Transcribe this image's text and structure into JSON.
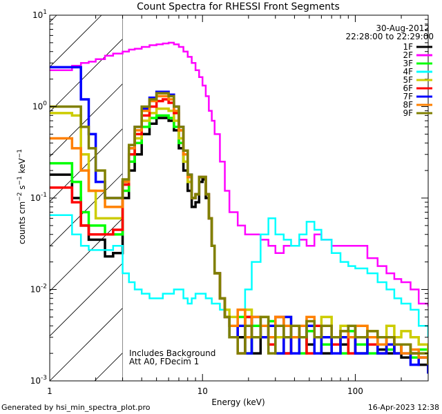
{
  "chart_data": {
    "type": "line",
    "title": "Count Spectra for RHESSI Front Segments",
    "xlabel": "Energy (keV)",
    "ylabel": "counts cm-2 s-1 keV-1",
    "xscale": "log",
    "yscale": "log",
    "xlim": [
      1,
      300
    ],
    "ylim": [
      0.001,
      10
    ],
    "x_ticks": [
      {
        "v": 1,
        "label": "1"
      },
      {
        "v": 10,
        "label": "10"
      },
      {
        "v": 100,
        "label": "100"
      }
    ],
    "y_ticks": [
      {
        "v": 0.001,
        "base": "10",
        "exp": "-3"
      },
      {
        "v": 0.01,
        "base": "10",
        "exp": "-2"
      },
      {
        "v": 0.1,
        "base": "10",
        "exp": "-1"
      },
      {
        "v": 1,
        "base": "10",
        "exp": "0"
      },
      {
        "v": 10,
        "base": "10",
        "exp": "1"
      }
    ],
    "date": "30-Aug-2012",
    "time_range": "22:28:00 to 22:29:00",
    "annotation": [
      "Includes Background",
      "Att A0, FDecim 1"
    ],
    "hatched_region_max_energy": 3,
    "legend_position": "top-right",
    "energy": [
      1.0,
      1.2,
      1.4,
      1.6,
      1.8,
      2.0,
      2.3,
      2.6,
      3.0,
      3.3,
      3.6,
      4.0,
      4.5,
      5.0,
      5.5,
      6.0,
      6.5,
      7.0,
      7.5,
      8.0,
      8.5,
      9.0,
      9.5,
      10,
      10.5,
      11,
      11.5,
      12,
      13,
      14,
      15,
      17,
      19,
      21,
      24,
      27,
      30,
      34,
      38,
      43,
      48,
      54,
      60,
      70,
      80,
      90,
      100,
      120,
      140,
      160,
      180,
      200,
      230,
      260,
      300
    ],
    "series": [
      {
        "name": "1F",
        "color": "#000000",
        "values": [
          0.18,
          0.18,
          0.1,
          0.05,
          0.035,
          0.035,
          0.023,
          0.025,
          0.1,
          0.2,
          0.3,
          0.5,
          0.65,
          0.75,
          0.75,
          0.7,
          0.55,
          0.35,
          0.2,
          0.12,
          0.08,
          0.09,
          0.15,
          0.16,
          0.1,
          0.06,
          0.03,
          0.015,
          0.008,
          0.005,
          0.004,
          0.003,
          0.005,
          0.002,
          0.004,
          0.003,
          0.005,
          0.002,
          0.004,
          0.003,
          0.0025,
          0.004,
          0.002,
          0.003,
          0.0025,
          0.003,
          0.002,
          0.003,
          0.0022,
          0.002,
          0.0025,
          0.0018,
          0.002,
          0.0015,
          0.0012
        ]
      },
      {
        "name": "2F",
        "color": "#ff00ff",
        "values": [
          2.5,
          2.5,
          2.8,
          3.0,
          3.1,
          3.3,
          3.6,
          3.8,
          4.0,
          4.2,
          4.3,
          4.5,
          4.7,
          4.8,
          4.9,
          5.0,
          4.8,
          4.5,
          4.0,
          3.5,
          3.0,
          2.5,
          2.1,
          1.7,
          1.3,
          0.9,
          0.7,
          0.5,
          0.25,
          0.12,
          0.07,
          0.05,
          0.04,
          0.04,
          0.035,
          0.03,
          0.025,
          0.03,
          0.03,
          0.035,
          0.03,
          0.04,
          0.035,
          0.03,
          0.03,
          0.03,
          0.03,
          0.022,
          0.018,
          0.015,
          0.013,
          0.012,
          0.01,
          0.007,
          0.0065
        ]
      },
      {
        "name": "3F",
        "color": "#00ff00",
        "values": [
          0.24,
          0.24,
          0.15,
          0.07,
          0.05,
          0.05,
          0.04,
          0.04,
          0.12,
          0.25,
          0.4,
          0.6,
          0.75,
          0.8,
          0.8,
          0.75,
          0.6,
          0.4,
          0.25,
          0.15,
          0.1,
          0.11,
          0.17,
          0.17,
          0.11,
          0.06,
          0.03,
          0.015,
          0.008,
          0.005,
          0.003,
          0.005,
          0.002,
          0.004,
          0.003,
          0.0045,
          0.002,
          0.004,
          0.003,
          0.002,
          0.0035,
          0.004,
          0.0025,
          0.003,
          0.002,
          0.0035,
          0.0025,
          0.002,
          0.003,
          0.0022,
          0.002,
          0.0025,
          0.0018,
          0.0022,
          0.0017
        ]
      },
      {
        "name": "4F",
        "color": "#00ffff",
        "values": [
          0.065,
          0.065,
          0.04,
          0.03,
          0.027,
          0.027,
          0.027,
          0.03,
          0.015,
          0.012,
          0.01,
          0.009,
          0.008,
          0.008,
          0.009,
          0.009,
          0.01,
          0.01,
          0.008,
          0.007,
          0.008,
          0.009,
          0.009,
          0.009,
          0.008,
          0.008,
          0.007,
          0.007,
          0.006,
          0.005,
          0.004,
          0.006,
          0.01,
          0.02,
          0.04,
          0.06,
          0.04,
          0.035,
          0.03,
          0.04,
          0.055,
          0.045,
          0.035,
          0.025,
          0.02,
          0.018,
          0.017,
          0.015,
          0.012,
          0.01,
          0.008,
          0.007,
          0.006,
          0.004,
          0.003
        ]
      },
      {
        "name": "5F",
        "color": "#cccc00",
        "values": [
          0.85,
          0.85,
          0.8,
          0.3,
          0.12,
          0.06,
          0.06,
          0.06,
          0.15,
          0.3,
          0.45,
          0.7,
          0.85,
          0.95,
          0.95,
          0.9,
          0.7,
          0.45,
          0.25,
          0.15,
          0.1,
          0.11,
          0.17,
          0.17,
          0.11,
          0.06,
          0.03,
          0.015,
          0.008,
          0.006,
          0.005,
          0.004,
          0.006,
          0.003,
          0.005,
          0.004,
          0.003,
          0.005,
          0.004,
          0.003,
          0.004,
          0.003,
          0.005,
          0.003,
          0.004,
          0.003,
          0.004,
          0.0035,
          0.003,
          0.004,
          0.003,
          0.0035,
          0.003,
          0.0025,
          0.002
        ]
      },
      {
        "name": "6F",
        "color": "#ff0000",
        "values": [
          0.13,
          0.13,
          0.09,
          0.05,
          0.04,
          0.04,
          0.04,
          0.045,
          0.14,
          0.3,
          0.5,
          0.8,
          1.0,
          1.15,
          1.2,
          1.1,
          0.85,
          0.55,
          0.3,
          0.17,
          0.1,
          0.11,
          0.17,
          0.17,
          0.11,
          0.06,
          0.03,
          0.015,
          0.008,
          0.005,
          0.004,
          0.002,
          0.005,
          0.003,
          0.004,
          0.0025,
          0.005,
          0.002,
          0.004,
          0.003,
          0.002,
          0.004,
          0.003,
          0.0025,
          0.003,
          0.002,
          0.003,
          0.0025,
          0.002,
          0.003,
          0.002,
          0.0025,
          0.002,
          0.0018,
          0.0015
        ]
      },
      {
        "name": "7F",
        "color": "#0000ff",
        "values": [
          2.7,
          2.7,
          2.7,
          1.2,
          0.5,
          0.15,
          0.1,
          0.1,
          0.15,
          0.35,
          0.6,
          0.95,
          1.25,
          1.45,
          1.45,
          1.35,
          1.0,
          0.6,
          0.33,
          0.18,
          0.1,
          0.11,
          0.17,
          0.17,
          0.11,
          0.06,
          0.03,
          0.015,
          0.008,
          0.005,
          0.003,
          0.004,
          0.002,
          0.005,
          0.003,
          0.004,
          0.002,
          0.005,
          0.002,
          0.003,
          0.004,
          0.002,
          0.003,
          0.002,
          0.003,
          0.004,
          0.002,
          0.003,
          0.002,
          0.0025,
          0.002,
          0.002,
          0.0015,
          0.0018,
          0.0012
        ]
      },
      {
        "name": "8F",
        "color": "#ff8000",
        "values": [
          0.45,
          0.45,
          0.35,
          0.2,
          0.12,
          0.12,
          0.08,
          0.08,
          0.15,
          0.35,
          0.55,
          0.9,
          1.15,
          1.3,
          1.3,
          1.2,
          0.9,
          0.55,
          0.3,
          0.17,
          0.1,
          0.11,
          0.17,
          0.17,
          0.11,
          0.06,
          0.03,
          0.015,
          0.008,
          0.005,
          0.004,
          0.006,
          0.003,
          0.005,
          0.004,
          0.003,
          0.005,
          0.004,
          0.003,
          0.004,
          0.005,
          0.003,
          0.004,
          0.003,
          0.0035,
          0.003,
          0.004,
          0.003,
          0.0025,
          0.003,
          0.0025,
          0.002,
          0.0022,
          0.0018,
          0.0015
        ]
      },
      {
        "name": "9F",
        "color": "#808000",
        "values": [
          1.0,
          1.0,
          1.0,
          0.6,
          0.35,
          0.2,
          0.1,
          0.1,
          0.16,
          0.38,
          0.6,
          1.0,
          1.2,
          1.4,
          1.4,
          1.3,
          1.0,
          0.6,
          0.33,
          0.18,
          0.1,
          0.11,
          0.17,
          0.17,
          0.11,
          0.06,
          0.03,
          0.015,
          0.008,
          0.005,
          0.003,
          0.002,
          0.004,
          0.003,
          0.005,
          0.002,
          0.004,
          0.003,
          0.004,
          0.003,
          0.0045,
          0.003,
          0.004,
          0.003,
          0.0035,
          0.004,
          0.003,
          0.0035,
          0.003,
          0.003,
          0.0025,
          0.0025,
          0.002,
          0.002,
          0.0015
        ]
      }
    ]
  },
  "footer": {
    "generated_by": "Generated by hsi_min_spectra_plot.pro",
    "timestamp": "16-Apr-2023 12:38"
  }
}
